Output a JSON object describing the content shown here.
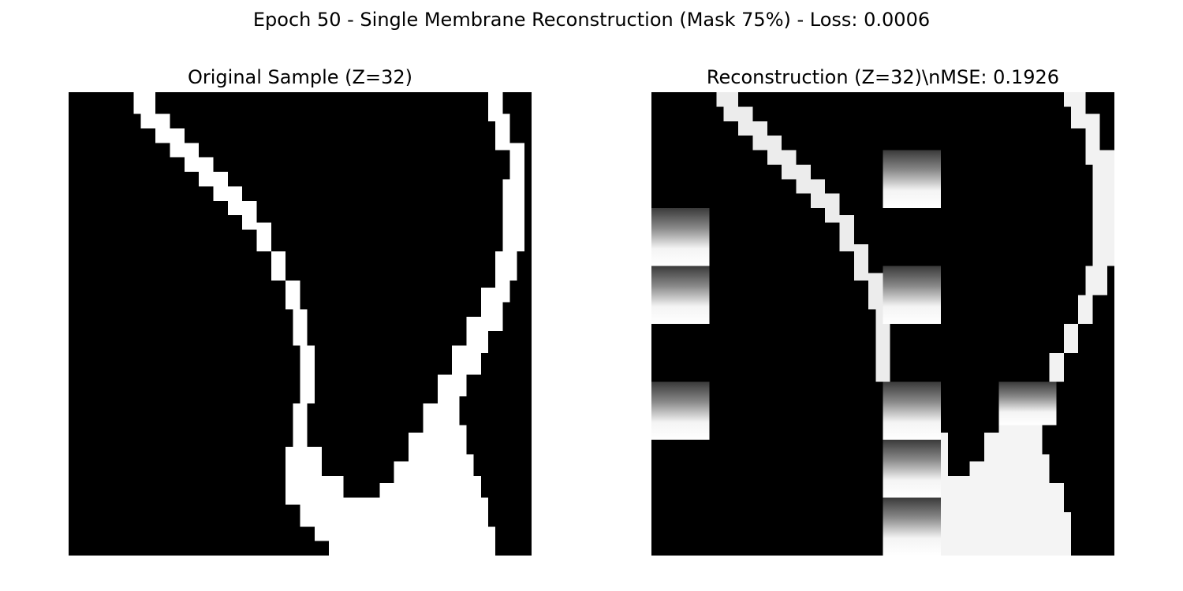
{
  "figure": {
    "suptitle": "Epoch 50 - Single Membrane Reconstruction (Mask 75%) - Loss: 0.0006"
  },
  "panels": {
    "original": {
      "title": "Original Sample (Z=32)"
    },
    "reconstruction": {
      "title": "Reconstruction (Z=32)\\nMSE: 0.1926"
    }
  },
  "colors": {
    "background": "#000000",
    "membrane": "#ffffff",
    "reconstruction_membrane": "#f4f4f4",
    "artifact_dark": "#3a3a3a",
    "artifact_mid": "#8a8a8a"
  },
  "colormap": "gray"
}
